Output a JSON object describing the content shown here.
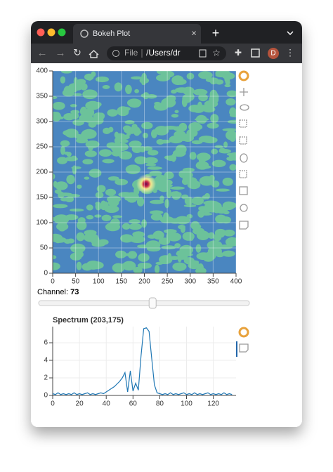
{
  "browser": {
    "tab_title": "Bokeh Plot",
    "address_scheme": "File",
    "address_path": "/Users/dr",
    "profile_initial": "D"
  },
  "slider": {
    "label": "Channel:",
    "value": 73,
    "start": 0,
    "end": 135
  },
  "chart_data": [
    {
      "type": "image",
      "xlim": [
        0,
        400
      ],
      "ylim": [
        0,
        400
      ],
      "xticks": [
        0,
        50,
        100,
        150,
        200,
        250,
        300,
        350,
        400
      ],
      "yticks": [
        0,
        50,
        100,
        150,
        200,
        250,
        300,
        350,
        400
      ],
      "grid": true
    },
    {
      "type": "line",
      "title": "Spectrum (203,175)",
      "color": "#1f77b4",
      "x": [
        0,
        2,
        4,
        6,
        8,
        10,
        12,
        14,
        16,
        18,
        20,
        22,
        24,
        26,
        28,
        30,
        32,
        34,
        36,
        38,
        40,
        42,
        44,
        46,
        48,
        50,
        52,
        54,
        56,
        58,
        60,
        62,
        64,
        66,
        68,
        70,
        72,
        74,
        76,
        78,
        80,
        82,
        84,
        86,
        88,
        90,
        92,
        94,
        96,
        98,
        100,
        102,
        104,
        106,
        108,
        110,
        112,
        114,
        116,
        118,
        120,
        122,
        124,
        126,
        128,
        130,
        132,
        134
      ],
      "values": [
        0.2,
        0.1,
        0.3,
        0.1,
        0.2,
        0.1,
        0.2,
        0.1,
        0.3,
        0.1,
        0.2,
        0.1,
        0.2,
        0.3,
        0.1,
        0.2,
        0.1,
        0.2,
        0.3,
        0.2,
        0.4,
        0.6,
        0.8,
        1.0,
        1.3,
        1.6,
        2.0,
        2.6,
        0.4,
        2.8,
        0.5,
        1.4,
        0.6,
        4.5,
        7.6,
        7.7,
        7.3,
        4.2,
        1.2,
        0.3,
        0.2,
        0.1,
        0.2,
        0.1,
        0.3,
        0.1,
        0.2,
        0.1,
        0.2,
        0.3,
        0.1,
        0.2,
        0.1,
        0.3,
        0.1,
        0.2,
        0.1,
        0.2,
        0.3,
        0.1,
        0.2,
        0.1,
        0.2,
        0.1,
        0.3,
        0.1,
        0.2,
        0.1
      ],
      "xlim": [
        0,
        137
      ],
      "ylim": [
        0,
        7.84
      ],
      "xticks": [
        0,
        20,
        40,
        60,
        80,
        100,
        120
      ],
      "yticks": [
        0,
        2,
        4,
        6
      ],
      "grid": true
    }
  ]
}
